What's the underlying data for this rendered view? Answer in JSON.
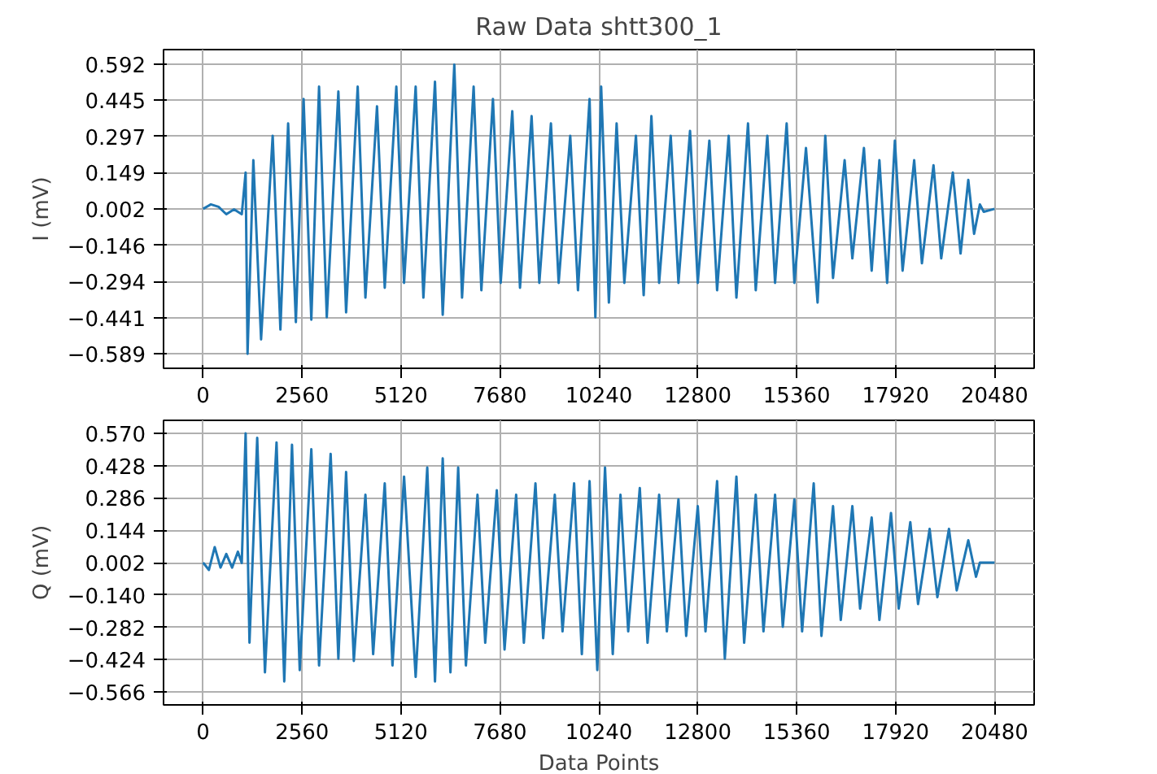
{
  "chart_data": [
    {
      "type": "line",
      "title": "Raw Data shtt300_1",
      "ylabel": "I (mV)",
      "grid": true,
      "xlim": [
        -1024,
        21504
      ],
      "ylim": [
        -0.648,
        0.651
      ],
      "xticks": [
        0,
        2560,
        5120,
        7680,
        10240,
        12800,
        15360,
        17920,
        20480
      ],
      "yticks": [
        0.592,
        0.445,
        0.297,
        0.149,
        0.002,
        -0.146,
        -0.294,
        -0.441,
        -0.589
      ],
      "x": [
        0,
        200,
        400,
        600,
        800,
        1000,
        1100,
        1150,
        1300,
        1500,
        1800,
        2000,
        2200,
        2400,
        2600,
        2800,
        3000,
        3200,
        3500,
        3700,
        4000,
        4200,
        4500,
        4700,
        5000,
        5200,
        5500,
        5700,
        6000,
        6200,
        6500,
        6700,
        7000,
        7200,
        7500,
        7700,
        8000,
        8200,
        8500,
        8700,
        9000,
        9200,
        9500,
        9700,
        10000,
        10150,
        10300,
        10500,
        10700,
        10900,
        11200,
        11400,
        11600,
        11800,
        12100,
        12300,
        12600,
        12800,
        13100,
        13300,
        13600,
        13800,
        14100,
        14300,
        14600,
        14800,
        15100,
        15300,
        15600,
        15900,
        16100,
        16300,
        16600,
        16800,
        17100,
        17300,
        17500,
        17700,
        17900,
        18100,
        18400,
        18600,
        18900,
        19100,
        19400,
        19600,
        19800,
        19950,
        20100,
        20200,
        20480
      ],
      "series": [
        {
          "color": "#1f77b4",
          "values": [
            0.002,
            0.02,
            0.01,
            -0.02,
            0.0,
            -0.02,
            0.15,
            -0.589,
            0.2,
            -0.53,
            0.3,
            -0.49,
            0.35,
            -0.46,
            0.45,
            -0.45,
            0.5,
            -0.44,
            0.48,
            -0.42,
            0.5,
            -0.36,
            0.42,
            -0.32,
            0.5,
            -0.3,
            0.5,
            -0.36,
            0.52,
            -0.43,
            0.59,
            -0.36,
            0.5,
            -0.33,
            0.45,
            -0.3,
            0.4,
            -0.32,
            0.38,
            -0.3,
            0.35,
            -0.3,
            0.3,
            -0.33,
            0.45,
            -0.44,
            0.5,
            -0.38,
            0.35,
            -0.3,
            0.3,
            -0.35,
            0.38,
            -0.3,
            0.3,
            -0.3,
            0.32,
            -0.3,
            0.28,
            -0.33,
            0.3,
            -0.36,
            0.35,
            -0.33,
            0.3,
            -0.3,
            0.35,
            -0.3,
            0.25,
            -0.38,
            0.3,
            -0.28,
            0.2,
            -0.2,
            0.25,
            -0.25,
            0.2,
            -0.3,
            0.28,
            -0.25,
            0.2,
            -0.22,
            0.18,
            -0.2,
            0.15,
            -0.18,
            0.12,
            -0.1,
            0.02,
            -0.01,
            0.002
          ]
        }
      ]
    },
    {
      "type": "line",
      "xlabel": "Data Points",
      "ylabel": "Q (mV)",
      "grid": true,
      "xlim": [
        -1024,
        21504
      ],
      "ylim": [
        -0.623,
        0.627
      ],
      "xticks": [
        0,
        2560,
        5120,
        7680,
        10240,
        12800,
        15360,
        17920,
        20480
      ],
      "yticks": [
        {
          "value": 0.57,
          "label": "0.570"
        },
        0.428,
        0.286,
        0.144,
        0.002,
        {
          "value": -0.14,
          "label": "−0.140"
        },
        -0.282,
        -0.424,
        -0.566
      ],
      "x": [
        0,
        150,
        300,
        450,
        600,
        750,
        900,
        1000,
        1100,
        1200,
        1400,
        1600,
        1900,
        2100,
        2300,
        2500,
        2800,
        3000,
        3300,
        3500,
        3700,
        3900,
        4200,
        4400,
        4700,
        4900,
        5200,
        5500,
        5800,
        6000,
        6200,
        6400,
        6600,
        6800,
        7100,
        7300,
        7600,
        7800,
        8100,
        8300,
        8600,
        8800,
        9100,
        9300,
        9600,
        9800,
        10000,
        10200,
        10400,
        10600,
        10800,
        11000,
        11300,
        11500,
        11800,
        12000,
        12300,
        12500,
        12800,
        13000,
        13300,
        13500,
        13800,
        14000,
        14300,
        14500,
        14800,
        15000,
        15300,
        15500,
        15800,
        16000,
        16300,
        16500,
        16800,
        17000,
        17300,
        17500,
        17800,
        18000,
        18300,
        18500,
        18800,
        19000,
        19300,
        19500,
        19800,
        20000,
        20100,
        20480
      ],
      "series": [
        {
          "color": "#1f77b4",
          "values": [
            0.002,
            -0.03,
            0.07,
            -0.02,
            0.04,
            -0.02,
            0.05,
            0.0,
            0.57,
            -0.35,
            0.55,
            -0.48,
            0.53,
            -0.52,
            0.52,
            -0.47,
            0.5,
            -0.45,
            0.48,
            -0.42,
            0.4,
            -0.43,
            0.3,
            -0.4,
            0.35,
            -0.45,
            0.38,
            -0.5,
            0.42,
            -0.52,
            0.46,
            -0.48,
            0.42,
            -0.45,
            0.3,
            -0.35,
            0.32,
            -0.38,
            0.3,
            -0.35,
            0.35,
            -0.33,
            0.3,
            -0.3,
            0.35,
            -0.4,
            0.36,
            -0.47,
            0.42,
            -0.4,
            0.3,
            -0.3,
            0.33,
            -0.35,
            0.3,
            -0.3,
            0.28,
            -0.32,
            0.25,
            -0.3,
            0.36,
            -0.42,
            0.38,
            -0.35,
            0.3,
            -0.3,
            0.3,
            -0.28,
            0.28,
            -0.3,
            0.35,
            -0.32,
            0.25,
            -0.25,
            0.25,
            -0.2,
            0.2,
            -0.25,
            0.22,
            -0.2,
            0.18,
            -0.18,
            0.15,
            -0.15,
            0.15,
            -0.12,
            0.1,
            -0.06,
            0.002,
            0.002
          ]
        }
      ]
    }
  ]
}
